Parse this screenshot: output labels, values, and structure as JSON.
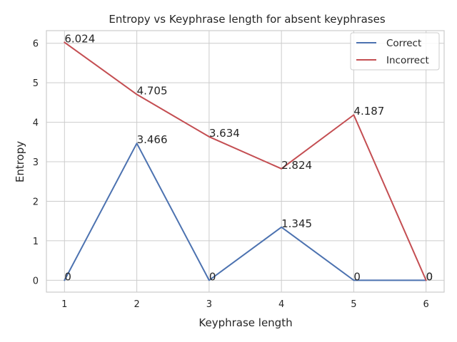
{
  "chart_data": {
    "type": "line",
    "title": "Entropy vs Keyphrase length for absent keyphrases",
    "xlabel": "Keyphrase length",
    "ylabel": "Entropy",
    "x": [
      1,
      2,
      3,
      4,
      5,
      6
    ],
    "xlim": [
      0.75,
      6.25
    ],
    "ylim": [
      -0.3,
      6.32
    ],
    "xticks": [
      1,
      2,
      3,
      4,
      5,
      6
    ],
    "yticks": [
      0,
      1,
      2,
      3,
      4,
      5,
      6
    ],
    "grid": true,
    "legend_position": "top-right",
    "series": [
      {
        "name": "Correct",
        "color": "#4c72b0",
        "values": [
          0,
          3.466,
          0,
          1.345,
          0,
          0
        ],
        "labels": [
          "0",
          "3.466",
          "0",
          "1.345",
          "0",
          "0"
        ]
      },
      {
        "name": "Incorrect",
        "color": "#c44e52",
        "values": [
          6.024,
          4.705,
          3.634,
          2.824,
          4.187,
          0
        ],
        "labels": [
          "6.024",
          "4.705",
          "3.634",
          "2.824",
          "4.187",
          "0"
        ]
      }
    ]
  }
}
